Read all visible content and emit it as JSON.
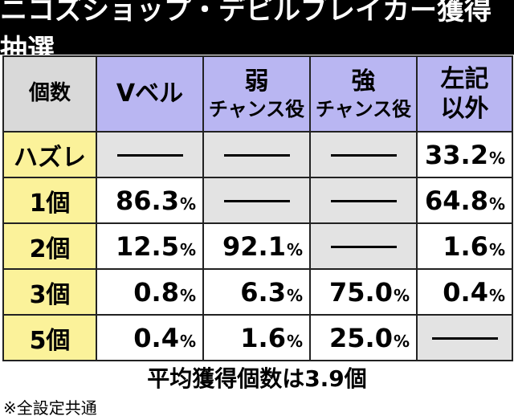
{
  "title": "ニコズショップ・デビルブレイカー獲得抽選",
  "table": {
    "corner_label": "個数",
    "columns": [
      {
        "line1": "Vベル",
        "line2": ""
      },
      {
        "line1": "弱",
        "line2": "チャンス役"
      },
      {
        "line1": "強",
        "line2": "チャンス役"
      },
      {
        "line1": "左記",
        "line2": "以外"
      }
    ],
    "rows": [
      {
        "label": "ハズレ",
        "cells": [
          {
            "value": null,
            "unit": ""
          },
          {
            "value": null,
            "unit": ""
          },
          {
            "value": null,
            "unit": ""
          },
          {
            "value": "33.2",
            "unit": "%"
          }
        ]
      },
      {
        "label": "1個",
        "cells": [
          {
            "value": "86.3",
            "unit": "%"
          },
          {
            "value": null,
            "unit": ""
          },
          {
            "value": null,
            "unit": ""
          },
          {
            "value": "64.8",
            "unit": "%"
          }
        ]
      },
      {
        "label": "2個",
        "cells": [
          {
            "value": "12.5",
            "unit": "%"
          },
          {
            "value": "92.1",
            "unit": "%"
          },
          {
            "value": null,
            "unit": ""
          },
          {
            "value": "1.6",
            "unit": "%"
          }
        ]
      },
      {
        "label": "3個",
        "cells": [
          {
            "value": "0.8",
            "unit": "%"
          },
          {
            "value": "6.3",
            "unit": "%"
          },
          {
            "value": "75.0",
            "unit": "%"
          },
          {
            "value": "0.4",
            "unit": "%"
          }
        ]
      },
      {
        "label": "5個",
        "cells": [
          {
            "value": "0.4",
            "unit": "%"
          },
          {
            "value": "1.6",
            "unit": "%"
          },
          {
            "value": "25.0",
            "unit": "%"
          },
          {
            "value": null,
            "unit": ""
          }
        ]
      }
    ]
  },
  "average_text": "平均獲得個数は3.9個",
  "note": "※全設定共通",
  "colors": {
    "title_bg": "#000000",
    "header_bg": "#b9b6f2",
    "corner_bg": "#d9d9d9",
    "row_label_bg": "#fbf29a",
    "empty_cell_bg": "#e3e3e3"
  }
}
